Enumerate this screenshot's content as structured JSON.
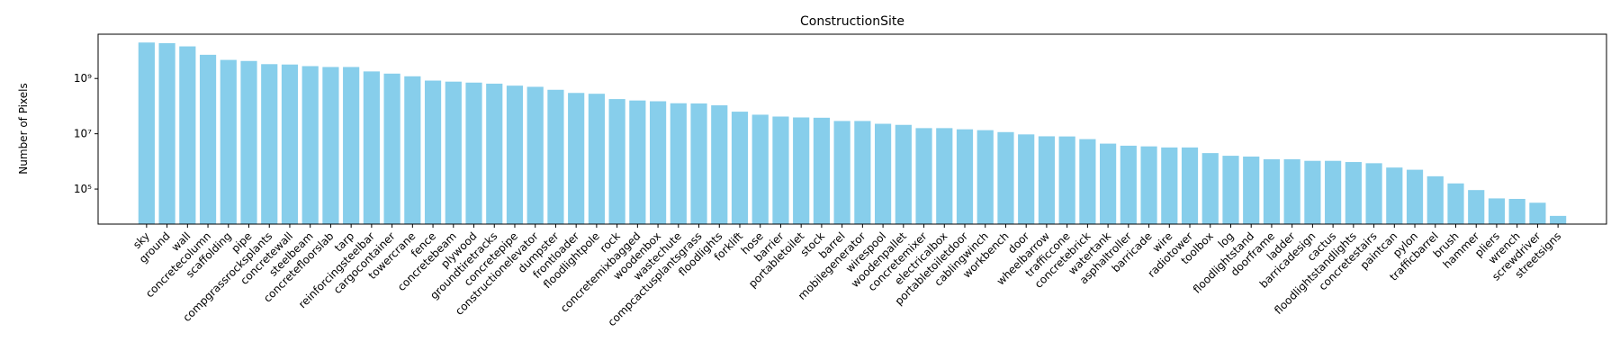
{
  "chart_data": {
    "type": "bar",
    "title": "ConstructionSite",
    "y_label": "Number of Pixels",
    "categories": [
      "sky",
      "ground",
      "wall",
      "concretecolumn",
      "scaffolding",
      "pipe",
      "compgrassrocksplants",
      "concretewall",
      "steelbeam",
      "concretefloorslab",
      "tarp",
      "reinforcingsteelbar",
      "cargocontainer",
      "towercrane",
      "fence",
      "concretebeam",
      "plywood",
      "groundtiretracks",
      "concretepipe",
      "constructionelevator",
      "dumpster",
      "frontloader",
      "floodlightpole",
      "rock",
      "concretemixbagged",
      "woodenbox",
      "wastechute",
      "compcactusplantsgrass",
      "floodlights",
      "forklift",
      "hose",
      "barrier",
      "portabletoilet",
      "stock",
      "barrel",
      "mobilegenerator",
      "wirespool",
      "woodenpallet",
      "concretemixer",
      "electricalbox",
      "portabletoiletdoor",
      "cablingwinch",
      "workbench",
      "door",
      "wheelbarrow",
      "trafficcone",
      "concretebrick",
      "watertank",
      "asphaltroller",
      "barricade",
      "wire",
      "radiotower",
      "toolbox",
      "log",
      "floodlightstand",
      "doorframe",
      "ladder",
      "barricadesign",
      "cactus",
      "floodlightstandlights",
      "concretestairs",
      "paintcan",
      "pylon",
      "trafficbarrel",
      "brush",
      "hammer",
      "pliers",
      "wrench",
      "screwdriver",
      "streetsigns"
    ],
    "values": [
      20000000000,
      19000000000,
      14500000000,
      7200000000,
      4700000000,
      4300000000,
      3300000000,
      3200000000,
      2800000000,
      2600000000,
      2600000000,
      1800000000,
      1500000000,
      1200000000,
      840000000,
      770000000,
      710000000,
      650000000,
      550000000,
      500000000,
      390000000,
      300000000,
      280000000,
      180000000,
      160000000,
      150000000,
      127000000,
      125000000,
      107000000,
      63000000,
      49000000,
      42000000,
      39000000,
      38000000,
      29000000,
      29000000,
      23000000,
      21000000,
      16000000,
      16000000,
      14500000,
      13500000,
      11500000,
      9500000,
      8100000,
      8000000,
      6400000,
      4400000,
      3700000,
      3500000,
      3200000,
      3200000,
      2000000,
      1600000,
      1500000,
      1200000,
      1200000,
      1050000,
      1050000,
      950000,
      860000,
      600000,
      500000,
      290000,
      160000,
      92000,
      46000,
      44000,
      32000,
      10700
    ],
    "color": "#87ceeb",
    "log_y": true,
    "ylim": [
      5400,
      40000000000
    ],
    "yticks": [
      {
        "value": 100000,
        "label": "10⁵"
      },
      {
        "value": 10000000,
        "label": "10⁷"
      },
      {
        "value": 1000000000,
        "label": "10⁹"
      }
    ]
  }
}
